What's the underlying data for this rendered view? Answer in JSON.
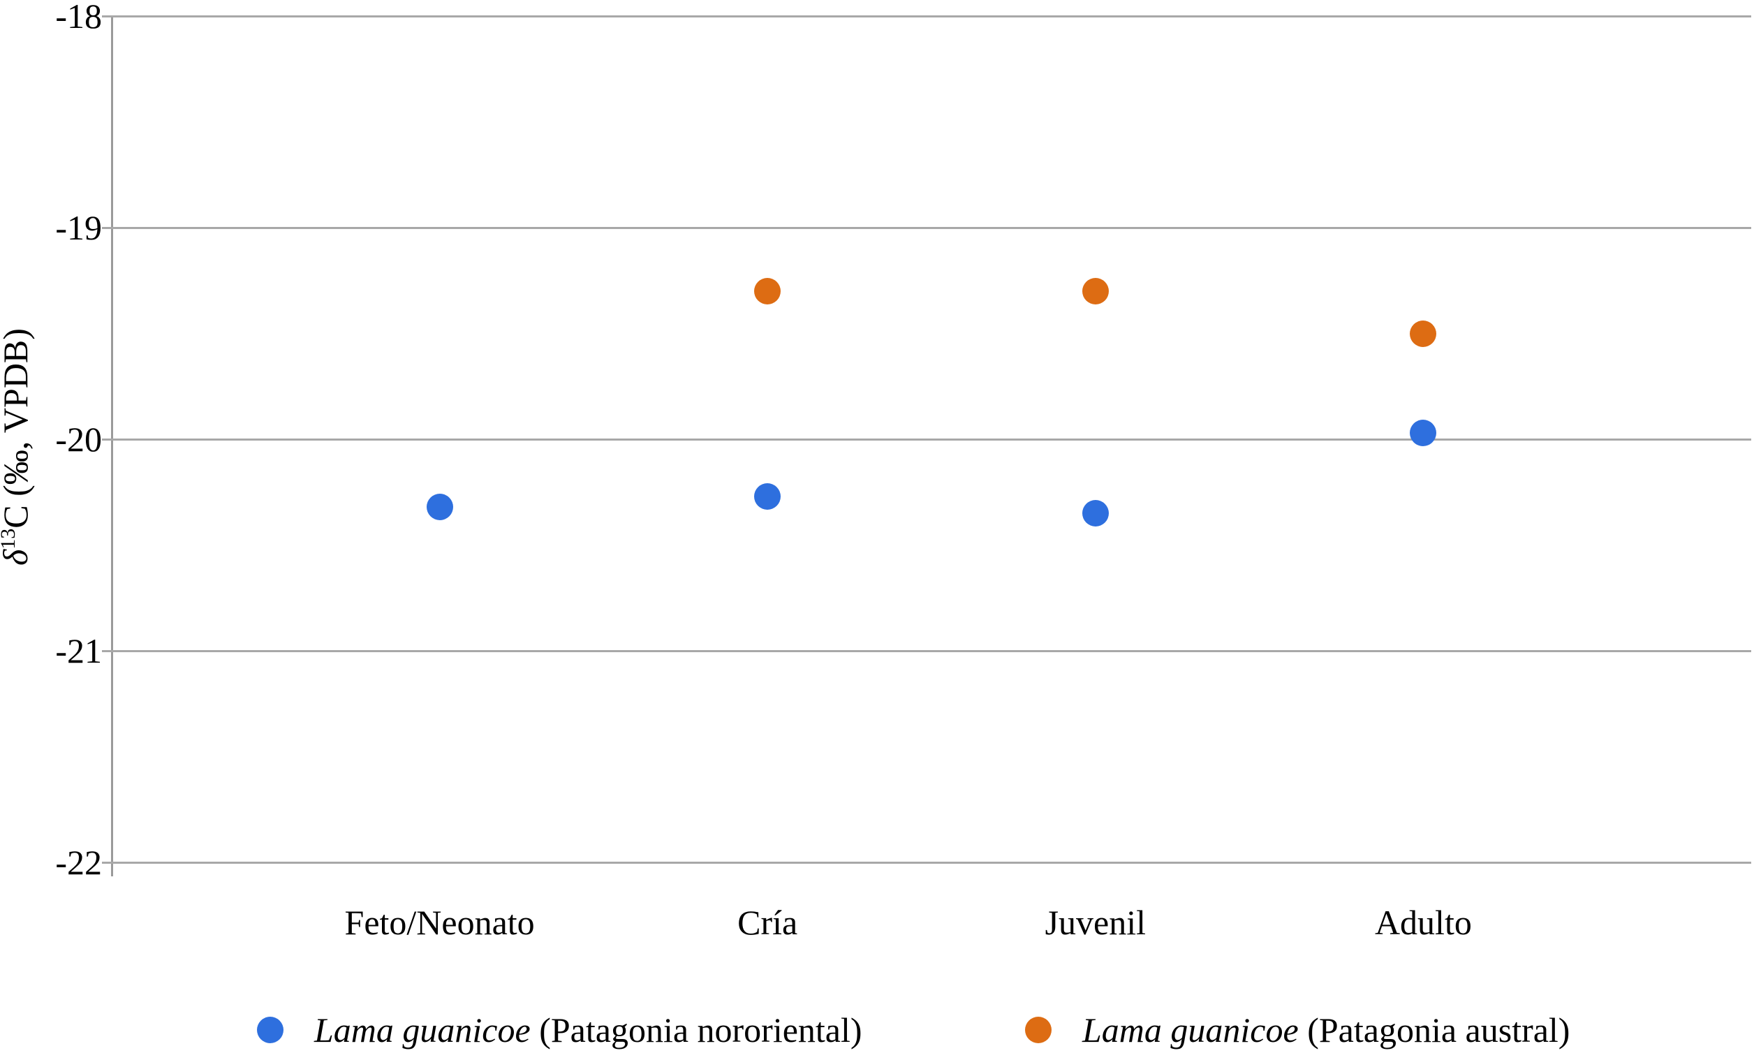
{
  "chart_data": {
    "type": "scatter",
    "title": "",
    "categories": [
      "Feto/Neonato",
      "Cría",
      "Juvenil",
      "Adulto"
    ],
    "series": [
      {
        "name": "Lama guanicoe (Patagonia nororiental)",
        "color": "#2e6fde",
        "values": [
          -20.32,
          -20.27,
          -20.35,
          -19.97
        ]
      },
      {
        "name": "Lama guanicoe (Patagonia austral)",
        "color": "#dd6c13",
        "values": [
          null,
          -19.3,
          -19.3,
          -19.5
        ]
      }
    ],
    "ylabel": "δ13C (‰, VPDB)",
    "ylabel_parts": {
      "delta": "δ",
      "sup": "13",
      "rest": "C (‰, VPDB)"
    },
    "xlabel": "",
    "ylim": [
      -22,
      -18
    ],
    "yticks": [
      -18,
      -19,
      -20,
      -21,
      -22
    ],
    "xlim": [
      0,
      5
    ],
    "x_positions": [
      1,
      2,
      3,
      4
    ],
    "grid": true,
    "legend_position": "bottom",
    "gridline_color": "#a8a8a8",
    "axis_color": "#9a9a9a",
    "background_color": "#ffffff",
    "text_color": "#000000"
  },
  "legend": {
    "items": [
      {
        "italic": "Lama guanicoe",
        "rest": " (Patagonia nororiental)",
        "color": "#2e6fde"
      },
      {
        "italic": "Lama guanicoe",
        "rest": " (Patagonia austral)",
        "color": "#dd6c13"
      }
    ]
  }
}
